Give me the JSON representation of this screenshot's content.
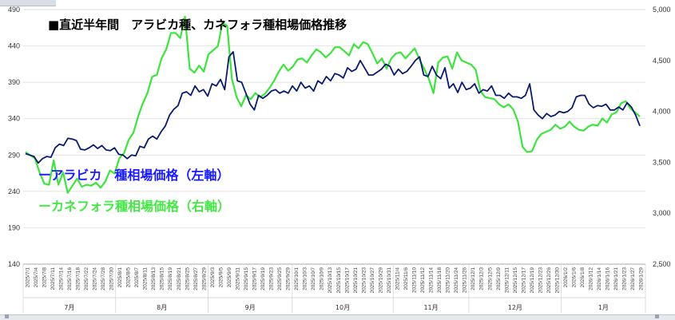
{
  "chart_data": {
    "type": "line",
    "title": "■直近半年間　アラビカ種、カネフォラ種相場価格推移",
    "y_left": {
      "min": 140,
      "max": 490,
      "ticks": [
        140,
        190,
        240,
        290,
        340,
        390,
        440,
        490
      ]
    },
    "y_right": {
      "min": 2500,
      "max": 5000,
      "ticks": [
        "2,500",
        "3,000",
        "3,500",
        "4,000",
        "4,500",
        "5,000"
      ],
      "tick_values": [
        2500,
        3000,
        3500,
        4000,
        4500,
        5000
      ]
    },
    "x_labels": [
      "2025/7/1",
      "2025/7/4",
      "2025/7/8",
      "2025/7/11",
      "2025/7/14",
      "2025/7/16",
      "2025/7/18",
      "2025/7/22",
      "2025/7/24",
      "2025/7/28",
      "2025/7/30",
      "2025/8/1",
      "2025/8/5",
      "2025/8/7",
      "2025/8/11",
      "2025/8/13",
      "2025/8/15",
      "2025/8/19",
      "2025/8/21",
      "2025/8/25",
      "2025/8/27",
      "2025/8/29",
      "2025/9/3",
      "2025/9/5",
      "2025/9/9",
      "2025/9/11",
      "2025/9/15",
      "2025/9/17",
      "2025/9/19",
      "2025/9/23",
      "2025/9/25",
      "2025/9/29",
      "2025/10/1",
      "2025/10/3",
      "2025/10/7",
      "2025/10/9",
      "2025/10/13",
      "2025/10/15",
      "2025/10/17",
      "2025/10/21",
      "2025/10/23",
      "2025/10/27",
      "2025/10/29",
      "2025/10/31",
      "2025/11/4",
      "2025/11/6",
      "2025/11/10",
      "2025/11/12",
      "2025/11/14",
      "2025/11/18",
      "2025/11/20",
      "2025/11/24",
      "2025/11/26",
      "2025/12/1",
      "2025/12/3",
      "2025/12/5",
      "2025/12/9",
      "2025/12/11",
      "2025/12/15",
      "2025/12/17",
      "2025/12/19",
      "2025/12/23",
      "2025/12/26",
      "2025/12/30",
      "2026/1/2",
      "2026/1/6",
      "2026/1/8",
      "2026/1/12",
      "2026/1/14",
      "2026/1/16",
      "2026/1/21",
      "2026/1/23",
      "2026/1/27",
      "2026/1/29"
    ],
    "months": [
      {
        "label": "7月",
        "start": 0,
        "end": 11
      },
      {
        "label": "8月",
        "start": 11,
        "end": 22
      },
      {
        "label": "9月",
        "start": 22,
        "end": 32
      },
      {
        "label": "10月",
        "start": 32,
        "end": 44
      },
      {
        "label": "11月",
        "start": 44,
        "end": 53
      },
      {
        "label": "12月",
        "start": 53,
        "end": 64
      },
      {
        "label": "1月",
        "start": 64,
        "end": 74
      }
    ],
    "series": [
      {
        "name": "ーアラビカ　種相場価格（左軸）",
        "axis": "left",
        "color": "#0a1a6e",
        "values": [
          292,
          290,
          288,
          279,
          285,
          288,
          287,
          300,
          305,
          303,
          313,
          312,
          310,
          298,
          297,
          300,
          304,
          299,
          303,
          297,
          296,
          300,
          291,
          290,
          285,
          290,
          289,
          302,
          300,
          312,
          316,
          312,
          322,
          330,
          345,
          353,
          358,
          375,
          377,
          372,
          385,
          377,
          380,
          371,
          388,
          385,
          394,
          380,
          425,
          432,
          392,
          390,
          375,
          360,
          352,
          372,
          368,
          372,
          378,
          380,
          375,
          378,
          375,
          385,
          378,
          390,
          382,
          385,
          378,
          392,
          388,
          398,
          392,
          402,
          400,
          396,
          410,
          405,
          408,
          420,
          410,
          400,
          400,
          404,
          408,
          415,
          412,
          400,
          408,
          402,
          405,
          412,
          420,
          425,
          400,
          398,
          412,
          400,
          395,
          410,
          382,
          388,
          376,
          390,
          380,
          382,
          388,
          375,
          380,
          378,
          385,
          372,
          372,
          368,
          375,
          370,
          370,
          368,
          372,
          388,
          352,
          345,
          340,
          347,
          343,
          345,
          350,
          348,
          350,
          355,
          370,
          372,
          372,
          360,
          355,
          358,
          357,
          360,
          352,
          352,
          356,
          352,
          362,
          356,
          345,
          330
        ]
      },
      {
        "name": "ーカネフォラ種相場価格（右軸）",
        "axis": "right",
        "color": "#3fe33f",
        "values": [
          3600,
          3570,
          3540,
          3400,
          3290,
          3280,
          3520,
          3280,
          3400,
          3200,
          3270,
          3340,
          3260,
          3280,
          3270,
          3300,
          3250,
          3310,
          3420,
          3390,
          3540,
          3590,
          3720,
          3790,
          3950,
          4080,
          4180,
          4340,
          4360,
          4520,
          4610,
          4770,
          4770,
          4720,
          4930,
          4420,
          4380,
          4450,
          4390,
          4560,
          4600,
          4640,
          4870,
          4840,
          4320,
          4140,
          4050,
          4160,
          4120,
          4180,
          4140,
          4170,
          4230,
          4300,
          4390,
          4460,
          4400,
          4440,
          4510,
          4520,
          4480,
          4550,
          4610,
          4580,
          4530,
          4570,
          4630,
          4630,
          4590,
          4550,
          4660,
          4620,
          4680,
          4660,
          4570,
          4470,
          4520,
          4420,
          4520,
          4570,
          4580,
          4520,
          4570,
          4620,
          4510,
          4420,
          4320,
          4180,
          4480,
          4530,
          4540,
          4420,
          4580,
          4500,
          4480,
          4460,
          4410,
          4200,
          4140,
          4130,
          4120,
          4070,
          4040,
          4070,
          4020,
          3900,
          3650,
          3600,
          3610,
          3720,
          3780,
          3800,
          3820,
          3870,
          3830,
          3850,
          3900,
          3850,
          3820,
          3810,
          3850,
          3870,
          3860,
          3930,
          3890,
          3970,
          3990,
          4080,
          4100,
          4030,
          3990,
          3950
        ]
      }
    ]
  }
}
